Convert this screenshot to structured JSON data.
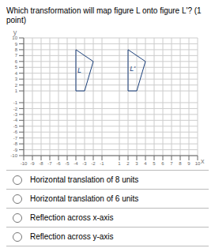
{
  "chart_data": {
    "type": "line",
    "title": "Which transformation will map figure L onto figure L'? (1 point)",
    "x_label": "x",
    "y_label": "y",
    "xlim": [
      -10,
      10
    ],
    "ylim": [
      -10,
      10
    ],
    "xticks": [
      -10,
      -9,
      -8,
      -7,
      -6,
      -5,
      -4,
      -3,
      -2,
      -1,
      1,
      2,
      3,
      4,
      5,
      6,
      7,
      8,
      9,
      10
    ],
    "yticks": [
      -10,
      -9,
      -8,
      -7,
      -6,
      -5,
      -4,
      -3,
      -2,
      -1,
      1,
      2,
      3,
      4,
      5,
      6,
      7,
      8,
      9,
      10
    ],
    "grid": true,
    "series": [
      {
        "name": "L",
        "color": "#1a3f7a",
        "x": [
          -4,
          -4,
          -2,
          -3,
          -4
        ],
        "values": [
          1,
          8,
          6,
          1,
          1
        ]
      },
      {
        "name": "L'",
        "color": "#1a3f7a",
        "x": [
          2,
          2,
          4,
          3,
          2
        ],
        "values": [
          1,
          8,
          6,
          1,
          1
        ]
      }
    ],
    "annotations": [
      {
        "text": "L",
        "x": -3.6,
        "y": 4.5,
        "color": "#1a3f7a"
      },
      {
        "text": "L'",
        "x": 2.5,
        "y": 4.8,
        "color": "#1a3f7a"
      }
    ],
    "choices": [
      "Horizontal translation of 8 units",
      "Horizontal translation of 6 units",
      "Reflection across x-axis",
      "Reflection across y-axis"
    ]
  }
}
